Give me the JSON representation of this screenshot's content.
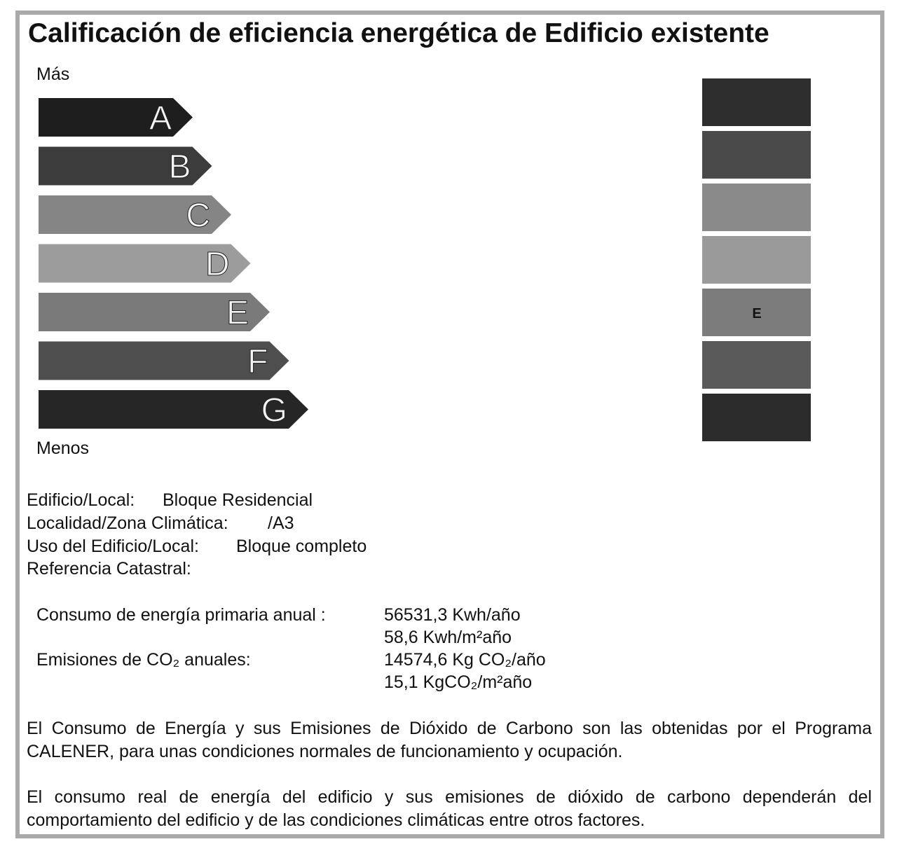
{
  "header": {
    "title": "Calificación de eficiencia energética de Edificio existente"
  },
  "scale": {
    "top_label": "Más",
    "bottom_label": "Menos",
    "ratings": [
      "A",
      "B",
      "C",
      "D",
      "E",
      "F",
      "G"
    ],
    "current": "E"
  },
  "building": [
    {
      "label": "Edificio/Local:",
      "value": "Bloque Residencial"
    },
    {
      "label": "Localidad/Zona Climática:",
      "value": "/A3"
    },
    {
      "label": "Uso del Edificio/Local:",
      "value": "Bloque completo"
    },
    {
      "label": "Referencia Catastral:",
      "value": ""
    }
  ],
  "results": {
    "energy_label": "Consumo de energía primaria anual :",
    "energy_values": [
      "56531,3 Kwh/año",
      "58,6 Kwh/m²año"
    ],
    "emissions_label": "Emisiones de CO₂ anuales:",
    "emissions_values": [
      "14574,6 Kg CO₂/año",
      "15,1 KgCO₂/m²año"
    ]
  },
  "notes": [
    "El Consumo de Energía y sus Emisiones de Dióxido de Carbono son las obtenidas por el Programa CALENER, para unas condiciones normales de funcionamiento y ocupación.",
    "El consumo real de energía del edificio y sus emisiones de dióxido de carbono dependerán del comportamiento del edificio y de las condiciones climáticas entre otros factores."
  ]
}
